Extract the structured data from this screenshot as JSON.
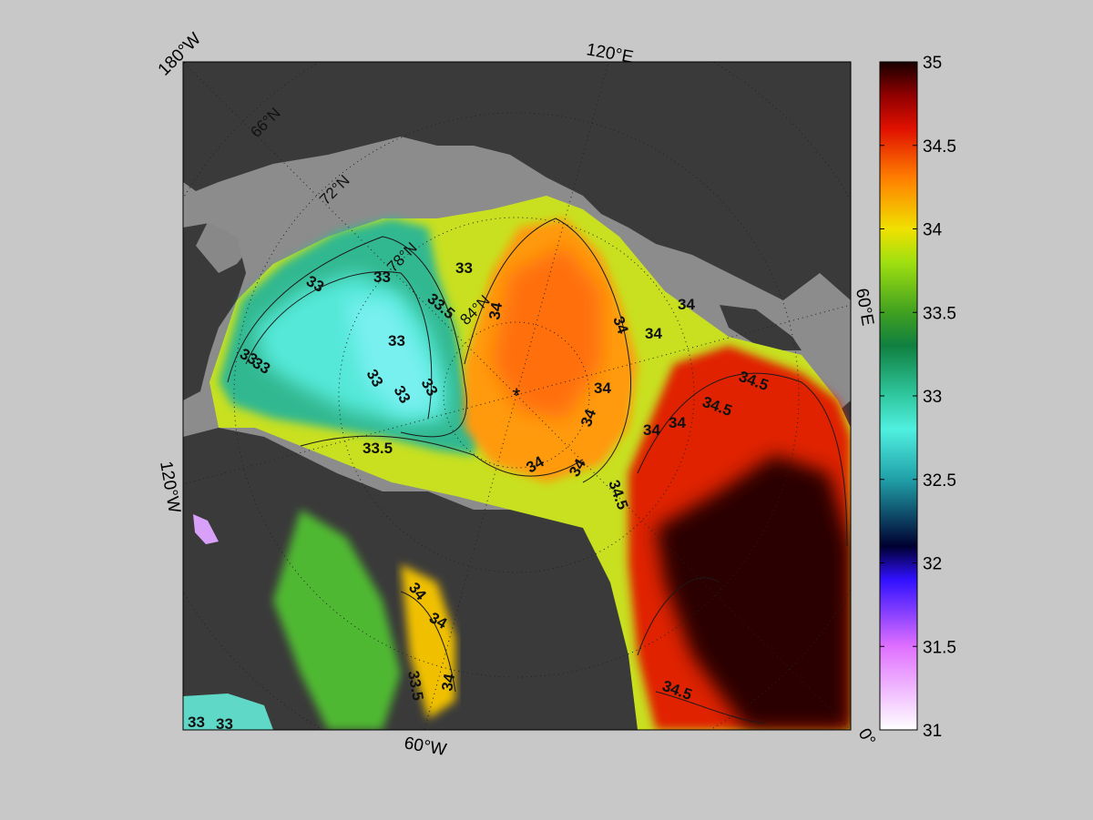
{
  "map": {
    "projection": "north polar stereographic",
    "pole_marker": "*",
    "corner_labels": [
      {
        "id": "top-left",
        "text": "180°W"
      },
      {
        "id": "top",
        "text": "120°E"
      },
      {
        "id": "right",
        "text": "60°E"
      },
      {
        "id": "left",
        "text": "120°W"
      },
      {
        "id": "bottom",
        "text": "60°W"
      },
      {
        "id": "bottom-right",
        "text": "0°"
      }
    ],
    "latitude_labels": [
      "66°N",
      "72°N",
      "78°N",
      "84°N"
    ],
    "contour_levels": [
      33,
      33.5,
      34,
      34.5
    ],
    "contour_labels": [
      "33",
      "33",
      "33",
      "33",
      "33",
      "33",
      "33",
      "33",
      "33",
      "33.5",
      "33.5",
      "33.5",
      "34",
      "34",
      "34",
      "34",
      "34",
      "34",
      "34",
      "34",
      "34",
      "34",
      "34",
      "34",
      "34",
      "34.5",
      "34.5",
      "34.5",
      "34.5",
      "33",
      "33"
    ],
    "colors": {
      "land": "#3a3a3a",
      "shelf_no_data": "#8c8c8c",
      "figure_background": "#c8c8c8"
    }
  },
  "colorbar": {
    "min": 31,
    "max": 35,
    "ticks": [
      "35",
      "34.5",
      "34",
      "33.5",
      "33",
      "32.5",
      "32",
      "31.5",
      "31"
    ],
    "colormap": [
      {
        "value": 31.0,
        "color": "#ffffff"
      },
      {
        "value": 31.5,
        "color": "#e070ff"
      },
      {
        "value": 31.9,
        "color": "#3010ff"
      },
      {
        "value": 32.1,
        "color": "#000030"
      },
      {
        "value": 32.5,
        "color": "#20a0a8"
      },
      {
        "value": 32.8,
        "color": "#50f0e0"
      },
      {
        "value": 33.0,
        "color": "#30c8a0"
      },
      {
        "value": 33.3,
        "color": "#108040"
      },
      {
        "value": 33.5,
        "color": "#40a020"
      },
      {
        "value": 33.8,
        "color": "#a0e010"
      },
      {
        "value": 34.0,
        "color": "#f0e000"
      },
      {
        "value": 34.3,
        "color": "#ff8000"
      },
      {
        "value": 34.6,
        "color": "#e01000"
      },
      {
        "value": 34.8,
        "color": "#900000"
      },
      {
        "value": 35.0,
        "color": "#180000"
      }
    ]
  }
}
